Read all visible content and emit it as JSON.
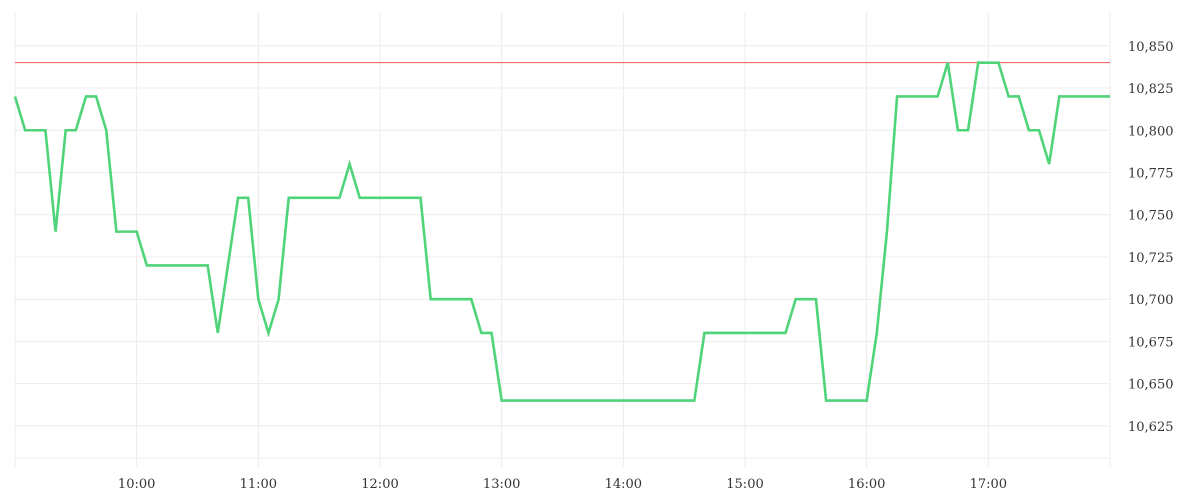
{
  "chart_data": {
    "type": "line",
    "title": "",
    "xlabel": "",
    "ylabel": "",
    "x_ticks": [
      "10:00",
      "11:00",
      "12:00",
      "13:00",
      "14:00",
      "15:00",
      "16:00",
      "17:00"
    ],
    "x_range": [
      "09:00",
      "18:00"
    ],
    "y_ticks": [
      10625,
      10650,
      10675,
      10700,
      10725,
      10750,
      10775,
      10800,
      10825,
      10850
    ],
    "y_tick_labels": [
      "10,625",
      "10,650",
      "10,675",
      "10,700",
      "10,725",
      "10,750",
      "10,775",
      "10,800",
      "10,825",
      "10,850"
    ],
    "ylim": [
      10606,
      10870
    ],
    "y_axis_position": "right",
    "grid": true,
    "reference_line": {
      "value": 10840,
      "color": "#f05454"
    },
    "series": [
      {
        "color": "#4fd479",
        "x": [
          "09:00",
          "09:05",
          "09:10",
          "09:15",
          "09:20",
          "09:25",
          "09:30",
          "09:35",
          "09:40",
          "09:45",
          "09:50",
          "09:55",
          "10:00",
          "10:05",
          "10:10",
          "10:15",
          "10:20",
          "10:25",
          "10:30",
          "10:35",
          "10:40",
          "10:45",
          "10:50",
          "10:55",
          "11:00",
          "11:05",
          "11:10",
          "11:15",
          "11:20",
          "11:25",
          "11:30",
          "11:35",
          "11:40",
          "11:45",
          "11:50",
          "11:55",
          "12:00",
          "12:05",
          "12:10",
          "12:15",
          "12:20",
          "12:25",
          "12:30",
          "12:35",
          "12:40",
          "12:45",
          "12:50",
          "12:55",
          "13:00",
          "13:05",
          "13:10",
          "13:15",
          "13:20",
          "13:25",
          "13:30",
          "13:35",
          "13:40",
          "13:45",
          "13:50",
          "13:55",
          "14:00",
          "14:05",
          "14:10",
          "14:15",
          "14:20",
          "14:25",
          "14:30",
          "14:35",
          "14:40",
          "14:45",
          "14:50",
          "14:55",
          "15:00",
          "15:05",
          "15:10",
          "15:15",
          "15:20",
          "15:25",
          "15:30",
          "15:35",
          "15:40",
          "15:45",
          "15:50",
          "15:55",
          "16:00",
          "16:05",
          "16:10",
          "16:15",
          "16:20",
          "16:25",
          "16:30",
          "16:35",
          "16:40",
          "16:45",
          "16:50",
          "16:55",
          "17:00",
          "17:05",
          "17:10",
          "17:15",
          "17:20",
          "17:25",
          "17:30",
          "17:35",
          "17:40",
          "17:45",
          "17:50",
          "17:55",
          "18:00"
        ],
        "values": [
          10820,
          10800,
          10800,
          10800,
          10740,
          10800,
          10800,
          10820,
          10820,
          10800,
          10740,
          10740,
          10740,
          10720,
          10720,
          10720,
          10720,
          10720,
          10720,
          10720,
          10680,
          10720,
          10760,
          10760,
          10700,
          10680,
          10700,
          10760,
          10760,
          10760,
          10760,
          10760,
          10760,
          10780,
          10760,
          10760,
          10760,
          10760,
          10760,
          10760,
          10760,
          10700,
          10700,
          10700,
          10700,
          10700,
          10680,
          10680,
          10640,
          10640,
          10640,
          10640,
          10640,
          10640,
          10640,
          10640,
          10640,
          10640,
          10640,
          10640,
          10640,
          10640,
          10640,
          10640,
          10640,
          10640,
          10640,
          10640,
          10680,
          10680,
          10680,
          10680,
          10680,
          10680,
          10680,
          10680,
          10680,
          10700,
          10700,
          10700,
          10640,
          10640,
          10640,
          10640,
          10640,
          10680,
          10740,
          10820,
          10820,
          10820,
          10820,
          10820,
          10840,
          10800,
          10800,
          10840,
          10840,
          10840,
          10820,
          10820,
          10800,
          10800,
          10780,
          10820,
          10820,
          10820,
          10820,
          10820,
          10820
        ]
      }
    ]
  }
}
